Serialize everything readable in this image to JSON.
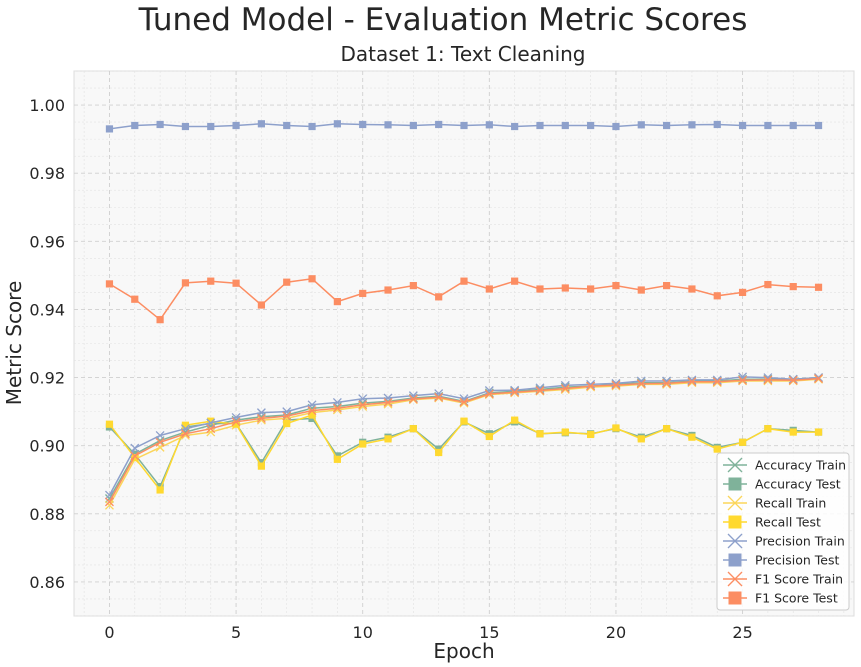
{
  "chart_data": {
    "type": "line",
    "title": "Tuned Model - Evaluation Metric Scores",
    "subtitle": "Dataset 1: Text Cleaning",
    "xlabel": "Epoch",
    "ylabel": "Metric Score",
    "xlim": [
      -1.4,
      29.4
    ],
    "ylim": [
      0.85,
      1.01
    ],
    "xticks": [
      0,
      5,
      10,
      15,
      20,
      25
    ],
    "yticks": [
      0.86,
      0.88,
      0.9,
      0.92,
      0.94,
      0.96,
      0.98,
      1.0
    ],
    "ytick_labels": [
      "0.86",
      "0.88",
      "0.90",
      "0.92",
      "0.94",
      "0.96",
      "0.98",
      "1.00"
    ],
    "grid": true,
    "minor_grid": true,
    "legend_position": "lower-right",
    "x": [
      0,
      1,
      2,
      3,
      4,
      5,
      6,
      7,
      8,
      9,
      10,
      11,
      12,
      13,
      14,
      15,
      16,
      17,
      18,
      19,
      20,
      21,
      22,
      23,
      24,
      25,
      26,
      27,
      28
    ],
    "series": [
      {
        "name": "Accuracy Train",
        "color": "#7fb29a",
        "marker": "x",
        "values": [
          0.8845,
          0.8975,
          0.9015,
          0.904,
          0.906,
          0.9075,
          0.9085,
          0.909,
          0.911,
          0.9115,
          0.9125,
          0.913,
          0.914,
          0.9145,
          0.913,
          0.9155,
          0.916,
          0.9165,
          0.9172,
          0.9175,
          0.918,
          0.9185,
          0.9185,
          0.919,
          0.919,
          0.9195,
          0.9195,
          0.9195,
          0.92
        ]
      },
      {
        "name": "Accuracy Test",
        "color": "#7fb29a",
        "marker": "square",
        "values": [
          0.9055,
          0.8975,
          0.888,
          0.9055,
          0.9065,
          0.9065,
          0.895,
          0.9075,
          0.908,
          0.897,
          0.901,
          0.9025,
          0.905,
          0.899,
          0.907,
          0.9035,
          0.907,
          0.9035,
          0.9038,
          0.9035,
          0.905,
          0.9025,
          0.905,
          0.903,
          0.8995,
          0.901,
          0.905,
          0.9045,
          0.904
        ]
      },
      {
        "name": "Recall Train",
        "color": "#fbd55a",
        "marker": "x",
        "values": [
          0.8825,
          0.896,
          0.8995,
          0.903,
          0.904,
          0.906,
          0.9075,
          0.908,
          0.9097,
          0.9105,
          0.9115,
          0.9122,
          0.9135,
          0.914,
          0.9125,
          0.915,
          0.9155,
          0.916,
          0.9165,
          0.9172,
          0.9175,
          0.918,
          0.918,
          0.9185,
          0.9185,
          0.919,
          0.919,
          0.919,
          0.9195
        ]
      },
      {
        "name": "Recall Test",
        "color": "#ffd92f",
        "marker": "square",
        "values": [
          0.9063,
          0.8965,
          0.887,
          0.906,
          0.9072,
          0.9063,
          0.894,
          0.9065,
          0.909,
          0.896,
          0.9005,
          0.902,
          0.905,
          0.898,
          0.9072,
          0.9027,
          0.9075,
          0.9035,
          0.904,
          0.9033,
          0.9052,
          0.902,
          0.905,
          0.9025,
          0.899,
          0.901,
          0.905,
          0.904,
          0.904
        ]
      },
      {
        "name": "Precision Train",
        "color": "#8da0cb",
        "marker": "x",
        "values": [
          0.8855,
          0.8993,
          0.903,
          0.905,
          0.9067,
          0.9083,
          0.9097,
          0.91,
          0.912,
          0.9127,
          0.9138,
          0.914,
          0.9147,
          0.9153,
          0.9138,
          0.9162,
          0.9163,
          0.917,
          0.9177,
          0.918,
          0.9183,
          0.919,
          0.919,
          0.9193,
          0.9193,
          0.9202,
          0.92,
          0.9195,
          0.92
        ]
      },
      {
        "name": "Precision Test",
        "color": "#8da0cb",
        "marker": "square",
        "values": [
          0.993,
          0.994,
          0.9943,
          0.9937,
          0.9937,
          0.994,
          0.9945,
          0.994,
          0.9937,
          0.9945,
          0.9943,
          0.9942,
          0.994,
          0.9943,
          0.994,
          0.9942,
          0.9937,
          0.994,
          0.994,
          0.994,
          0.9937,
          0.9942,
          0.994,
          0.9942,
          0.9943,
          0.994,
          0.994,
          0.994,
          0.994
        ]
      },
      {
        "name": "F1 Score Train",
        "color": "#fc8d62",
        "marker": "x",
        "values": [
          0.8835,
          0.897,
          0.901,
          0.9035,
          0.905,
          0.907,
          0.908,
          0.9087,
          0.9103,
          0.911,
          0.912,
          0.9127,
          0.9137,
          0.9142,
          0.9128,
          0.9152,
          0.9157,
          0.9162,
          0.9168,
          0.9175,
          0.9178,
          0.9182,
          0.9183,
          0.9188,
          0.9188,
          0.9192,
          0.9193,
          0.9192,
          0.9197
        ]
      },
      {
        "name": "F1 Score Test",
        "color": "#fc8d62",
        "marker": "square",
        "values": [
          0.9475,
          0.943,
          0.937,
          0.9478,
          0.9483,
          0.9477,
          0.9413,
          0.948,
          0.949,
          0.9423,
          0.9447,
          0.9457,
          0.947,
          0.9437,
          0.9483,
          0.946,
          0.9483,
          0.946,
          0.9463,
          0.946,
          0.947,
          0.9457,
          0.947,
          0.946,
          0.944,
          0.945,
          0.9473,
          0.9467,
          0.9465
        ]
      }
    ]
  }
}
